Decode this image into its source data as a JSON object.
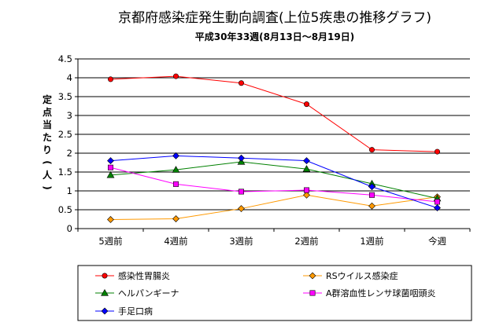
{
  "chart_data": {
    "type": "line",
    "title": "京都府感染症発生動向調査(上位5疾患の推移グラフ)",
    "subtitle": "平成30年33週(8月13日～8月19日)",
    "xlabel": "",
    "ylabel": "定点当たり(人)",
    "ylim": [
      0,
      4.5
    ],
    "yticks": [
      "0",
      "0.5",
      "1",
      "1.5",
      "2",
      "2.5",
      "3",
      "3.5",
      "4",
      "4.5"
    ],
    "ytick_values": [
      0,
      0.5,
      1,
      1.5,
      2,
      2.5,
      3,
      3.5,
      4,
      4.5
    ],
    "grid": true,
    "legend": "bottom",
    "categories": [
      "5週前",
      "4週前",
      "3週前",
      "2週前",
      "1週前",
      "今週"
    ],
    "series": [
      {
        "name": "感染性胃腸炎",
        "color": "#ff0000",
        "marker": "circle",
        "values": [
          3.96,
          4.04,
          3.86,
          3.3,
          2.09,
          2.04
        ]
      },
      {
        "name": "RSウイルス感染症",
        "color": "#ff9900",
        "marker": "diamond",
        "values": [
          0.24,
          0.26,
          0.53,
          0.89,
          0.6,
          0.84
        ]
      },
      {
        "name": "ヘルパンギーナ",
        "color": "#008000",
        "marker": "triangle",
        "values": [
          1.42,
          1.56,
          1.77,
          1.58,
          1.19,
          0.8
        ]
      },
      {
        "name": "A群溶血性レンサ球菌咽頭炎",
        "color": "#ff00ff",
        "marker": "square",
        "values": [
          1.62,
          1.18,
          0.98,
          1.02,
          0.89,
          0.71
        ]
      },
      {
        "name": "手足口病",
        "color": "#0000ff",
        "marker": "diamond",
        "values": [
          1.8,
          1.93,
          1.87,
          1.8,
          1.11,
          0.55
        ]
      }
    ]
  }
}
